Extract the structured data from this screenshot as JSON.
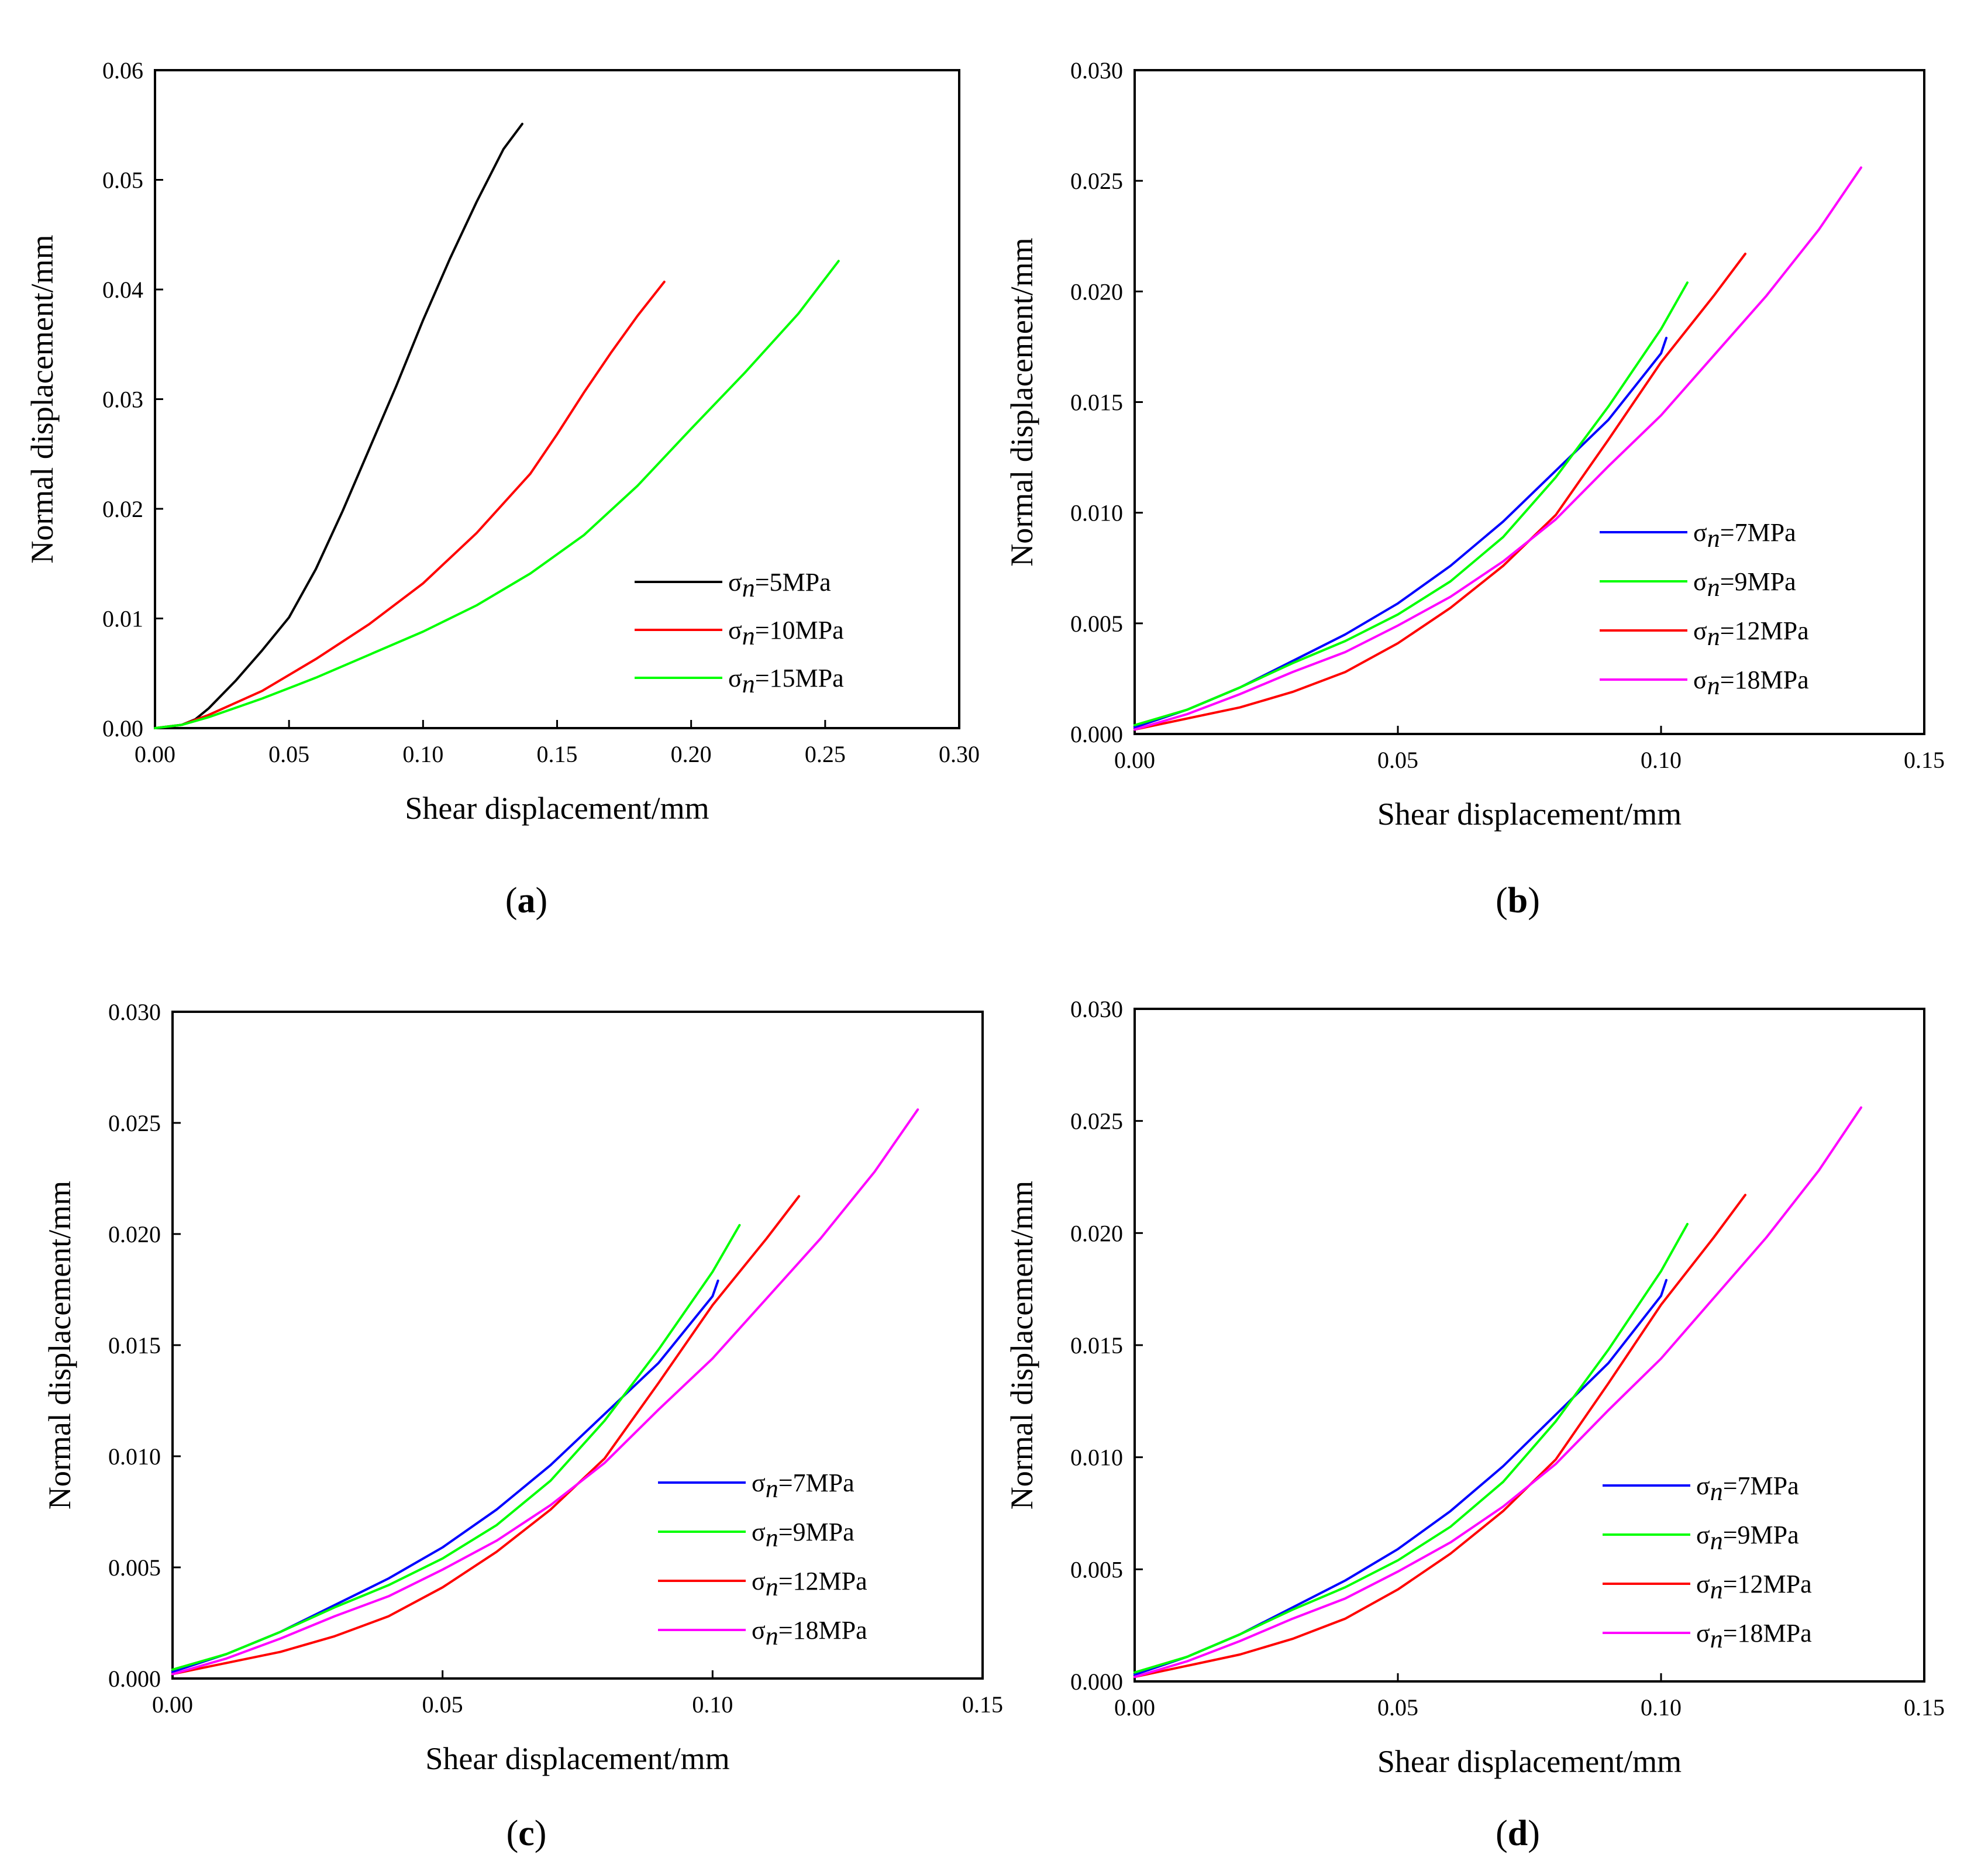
{
  "figure": {
    "panels": [
      "a",
      "b",
      "c",
      "d"
    ]
  },
  "chart_data": [
    {
      "panel": "a",
      "panel_label": "a",
      "type": "line",
      "title": "",
      "xlabel": "Shear displacement/mm",
      "ylabel": "Normal displacement/mm",
      "xlim": [
        0,
        0.3
      ],
      "ylim": [
        0,
        0.06
      ],
      "xticks": [
        0,
        0.05,
        0.1,
        0.15,
        0.2,
        0.25,
        0.3
      ],
      "xtick_labels": [
        "0.00",
        "0.05",
        "0.10",
        "0.15",
        "0.20",
        "0.25",
        "0.30"
      ],
      "yticks": [
        0,
        0.01,
        0.02,
        0.03,
        0.04,
        0.05,
        0.06
      ],
      "ytick_labels": [
        "0.00",
        "0.01",
        "0.02",
        "0.03",
        "0.04",
        "0.05",
        "0.06"
      ],
      "grid": false,
      "legend_position": "lower-right",
      "series": [
        {
          "name": "σn=5MPa",
          "legend_symbol": "σ",
          "legend_sub": "n",
          "legend_value": "=5MPa",
          "color": "#000000",
          "x": [
            0.0,
            0.01,
            0.015,
            0.02,
            0.03,
            0.04,
            0.05,
            0.06,
            0.07,
            0.08,
            0.09,
            0.1,
            0.11,
            0.12,
            0.13,
            0.137
          ],
          "y": [
            0.0,
            0.0003,
            0.0008,
            0.0018,
            0.0043,
            0.0071,
            0.0101,
            0.0145,
            0.0198,
            0.0255,
            0.0312,
            0.0372,
            0.0428,
            0.048,
            0.0528,
            0.0551
          ]
        },
        {
          "name": "σn=10MPa",
          "legend_symbol": "σ",
          "legend_sub": "n",
          "legend_value": "=10MPa",
          "color": "#ff0000",
          "x": [
            0.0,
            0.01,
            0.02,
            0.04,
            0.06,
            0.08,
            0.1,
            0.12,
            0.14,
            0.15,
            0.16,
            0.17,
            0.18,
            0.19
          ],
          "y": [
            0.0,
            0.0003,
            0.0012,
            0.0034,
            0.0063,
            0.0095,
            0.0132,
            0.0178,
            0.0232,
            0.0268,
            0.0306,
            0.0342,
            0.0376,
            0.0407
          ]
        },
        {
          "name": "σn=15MPa",
          "legend_symbol": "σ",
          "legend_sub": "n",
          "legend_value": "=15MPa",
          "color": "#00ff00",
          "x": [
            0.0,
            0.01,
            0.02,
            0.04,
            0.06,
            0.08,
            0.1,
            0.12,
            0.14,
            0.16,
            0.18,
            0.2,
            0.22,
            0.24,
            0.255
          ],
          "y": [
            0.0,
            0.0003,
            0.001,
            0.0027,
            0.0046,
            0.0067,
            0.0088,
            0.0112,
            0.0141,
            0.0176,
            0.0221,
            0.0273,
            0.0324,
            0.0378,
            0.0426
          ]
        }
      ]
    },
    {
      "panel": "b",
      "panel_label": "b",
      "type": "line",
      "title": "",
      "xlabel": "Shear displacement/mm",
      "ylabel": "Normal displacement/mm",
      "xlim": [
        0,
        0.15
      ],
      "ylim": [
        0,
        0.03
      ],
      "xticks": [
        0,
        0.05,
        0.1,
        0.15
      ],
      "xtick_labels": [
        "0.00",
        "0.05",
        "0.10",
        "0.15"
      ],
      "yticks": [
        0,
        0.005,
        0.01,
        0.015,
        0.02,
        0.025,
        0.03
      ],
      "ytick_labels": [
        "0.000",
        "0.005",
        "0.010",
        "0.015",
        "0.020",
        "0.025",
        "0.030"
      ],
      "grid": false,
      "legend_position": "lower-right",
      "series": [
        {
          "name": "σn=7MPa",
          "legend_symbol": "σ",
          "legend_sub": "n",
          "legend_value": "=7MPa",
          "color": "#0000ff",
          "x": [
            0.0,
            0.01,
            0.02,
            0.03,
            0.04,
            0.05,
            0.06,
            0.07,
            0.08,
            0.09,
            0.1,
            0.101
          ],
          "y": [
            0.0003,
            0.0011,
            0.0021,
            0.0033,
            0.0045,
            0.0059,
            0.0076,
            0.0096,
            0.0119,
            0.0142,
            0.0172,
            0.0179
          ]
        },
        {
          "name": "σn=9MPa",
          "legend_symbol": "σ",
          "legend_sub": "n",
          "legend_value": "=9MPa",
          "color": "#00ff00",
          "x": [
            0.0,
            0.01,
            0.02,
            0.03,
            0.04,
            0.05,
            0.06,
            0.07,
            0.08,
            0.09,
            0.1,
            0.105
          ],
          "y": [
            0.0004,
            0.0011,
            0.0021,
            0.0032,
            0.0042,
            0.0054,
            0.0069,
            0.0089,
            0.0116,
            0.0148,
            0.0183,
            0.0204
          ]
        },
        {
          "name": "σn=12MPa",
          "legend_symbol": "σ",
          "legend_sub": "n",
          "legend_value": "=12MPa",
          "color": "#ff0000",
          "x": [
            0.0,
            0.01,
            0.02,
            0.03,
            0.04,
            0.05,
            0.06,
            0.07,
            0.08,
            0.09,
            0.1,
            0.11,
            0.116
          ],
          "y": [
            0.0002,
            0.0007,
            0.0012,
            0.0019,
            0.0028,
            0.0041,
            0.0057,
            0.0076,
            0.0099,
            0.0133,
            0.0168,
            0.0198,
            0.0217
          ]
        },
        {
          "name": "σn=18MPa",
          "legend_symbol": "σ",
          "legend_sub": "n",
          "legend_value": "=18MPa",
          "color": "#ff00ff",
          "x": [
            0.0,
            0.01,
            0.02,
            0.03,
            0.04,
            0.05,
            0.06,
            0.07,
            0.08,
            0.09,
            0.1,
            0.11,
            0.12,
            0.13,
            0.138
          ],
          "y": [
            0.0002,
            0.0009,
            0.0018,
            0.0028,
            0.0037,
            0.0049,
            0.0062,
            0.0078,
            0.0097,
            0.0121,
            0.0144,
            0.0171,
            0.0198,
            0.0228,
            0.0256
          ]
        }
      ]
    },
    {
      "panel": "c",
      "panel_label": "c",
      "type": "line",
      "title": "",
      "xlabel": "Shear displacement/mm",
      "ylabel": "Normal displacement/mm",
      "xlim": [
        0,
        0.15
      ],
      "ylim": [
        0,
        0.03
      ],
      "xticks": [
        0,
        0.05,
        0.1,
        0.15
      ],
      "xtick_labels": [
        "0.00",
        "0.05",
        "0.10",
        "0.15"
      ],
      "yticks": [
        0,
        0.005,
        0.01,
        0.015,
        0.02,
        0.025,
        0.03
      ],
      "ytick_labels": [
        "0.000",
        "0.005",
        "0.010",
        "0.015",
        "0.020",
        "0.025",
        "0.030"
      ],
      "grid": false,
      "legend_position": "lower-right",
      "series": [
        {
          "name": "σn=7MPa",
          "legend_symbol": "σ",
          "legend_sub": "n",
          "legend_value": "=7MPa",
          "color": "#0000ff",
          "x": [
            0.0,
            0.01,
            0.02,
            0.03,
            0.04,
            0.05,
            0.06,
            0.07,
            0.08,
            0.09,
            0.1,
            0.101
          ],
          "y": [
            0.0003,
            0.0011,
            0.0021,
            0.0033,
            0.0045,
            0.0059,
            0.0076,
            0.0096,
            0.0119,
            0.0142,
            0.0172,
            0.0179
          ]
        },
        {
          "name": "σn=9MPa",
          "legend_symbol": "σ",
          "legend_sub": "n",
          "legend_value": "=9MPa",
          "color": "#00ff00",
          "x": [
            0.0,
            0.01,
            0.02,
            0.03,
            0.04,
            0.05,
            0.06,
            0.07,
            0.08,
            0.09,
            0.1,
            0.105
          ],
          "y": [
            0.0004,
            0.0011,
            0.0021,
            0.0032,
            0.0042,
            0.0054,
            0.0069,
            0.0089,
            0.0116,
            0.0148,
            0.0183,
            0.0204
          ]
        },
        {
          "name": "σn=12MPa",
          "legend_symbol": "σ",
          "legend_sub": "n",
          "legend_value": "=12MPa",
          "color": "#ff0000",
          "x": [
            0.0,
            0.01,
            0.02,
            0.03,
            0.04,
            0.05,
            0.06,
            0.07,
            0.08,
            0.09,
            0.1,
            0.11,
            0.116
          ],
          "y": [
            0.0002,
            0.0007,
            0.0012,
            0.0019,
            0.0028,
            0.0041,
            0.0057,
            0.0076,
            0.0099,
            0.0133,
            0.0168,
            0.0198,
            0.0217
          ]
        },
        {
          "name": "σn=18MPa",
          "legend_symbol": "σ",
          "legend_sub": "n",
          "legend_value": "=18MPa",
          "color": "#ff00ff",
          "x": [
            0.0,
            0.01,
            0.02,
            0.03,
            0.04,
            0.05,
            0.06,
            0.07,
            0.08,
            0.09,
            0.1,
            0.11,
            0.12,
            0.13,
            0.138
          ],
          "y": [
            0.0002,
            0.0009,
            0.0018,
            0.0028,
            0.0037,
            0.0049,
            0.0062,
            0.0078,
            0.0097,
            0.0121,
            0.0144,
            0.0171,
            0.0198,
            0.0228,
            0.0256
          ]
        }
      ]
    },
    {
      "panel": "d",
      "panel_label": "d",
      "type": "line",
      "title": "",
      "xlabel": "Shear displacement/mm",
      "ylabel": "Normal displacement/mm",
      "xlim": [
        0,
        0.15
      ],
      "ylim": [
        0,
        0.03
      ],
      "xticks": [
        0,
        0.05,
        0.1,
        0.15
      ],
      "xtick_labels": [
        "0.00",
        "0.05",
        "0.10",
        "0.15"
      ],
      "yticks": [
        0,
        0.005,
        0.01,
        0.015,
        0.02,
        0.025,
        0.03
      ],
      "ytick_labels": [
        "0.000",
        "0.005",
        "0.010",
        "0.015",
        "0.020",
        "0.025",
        "0.030"
      ],
      "grid": false,
      "legend_position": "lower-right",
      "series": [
        {
          "name": "σn=7MPa",
          "legend_symbol": "σ",
          "legend_sub": "n",
          "legend_value": "=7MPa",
          "color": "#0000ff",
          "x": [
            0.0,
            0.01,
            0.02,
            0.03,
            0.04,
            0.05,
            0.06,
            0.07,
            0.08,
            0.09,
            0.1,
            0.101
          ],
          "y": [
            0.0003,
            0.0011,
            0.0021,
            0.0033,
            0.0045,
            0.0059,
            0.0076,
            0.0096,
            0.0119,
            0.0142,
            0.0172,
            0.0179
          ]
        },
        {
          "name": "σn=9MPa",
          "legend_symbol": "σ",
          "legend_sub": "n",
          "legend_value": "=9MPa",
          "color": "#00ff00",
          "x": [
            0.0,
            0.01,
            0.02,
            0.03,
            0.04,
            0.05,
            0.06,
            0.07,
            0.08,
            0.09,
            0.1,
            0.105
          ],
          "y": [
            0.0004,
            0.0011,
            0.0021,
            0.0032,
            0.0042,
            0.0054,
            0.0069,
            0.0089,
            0.0116,
            0.0148,
            0.0183,
            0.0204
          ]
        },
        {
          "name": "σn=12MPa",
          "legend_symbol": "σ",
          "legend_sub": "n",
          "legend_value": "=12MPa",
          "color": "#ff0000",
          "x": [
            0.0,
            0.01,
            0.02,
            0.03,
            0.04,
            0.05,
            0.06,
            0.07,
            0.08,
            0.09,
            0.1,
            0.11,
            0.116
          ],
          "y": [
            0.0002,
            0.0007,
            0.0012,
            0.0019,
            0.0028,
            0.0041,
            0.0057,
            0.0076,
            0.0099,
            0.0133,
            0.0168,
            0.0198,
            0.0217
          ]
        },
        {
          "name": "σn=18MPa",
          "legend_symbol": "σ",
          "legend_sub": "n",
          "legend_value": "=18MPa",
          "color": "#ff00ff",
          "x": [
            0.0,
            0.01,
            0.02,
            0.03,
            0.04,
            0.05,
            0.06,
            0.07,
            0.08,
            0.09,
            0.1,
            0.11,
            0.12,
            0.13,
            0.138
          ],
          "y": [
            0.0002,
            0.0009,
            0.0018,
            0.0028,
            0.0037,
            0.0049,
            0.0062,
            0.0078,
            0.0097,
            0.0121,
            0.0144,
            0.0171,
            0.0198,
            0.0228,
            0.0256
          ]
        }
      ]
    }
  ]
}
